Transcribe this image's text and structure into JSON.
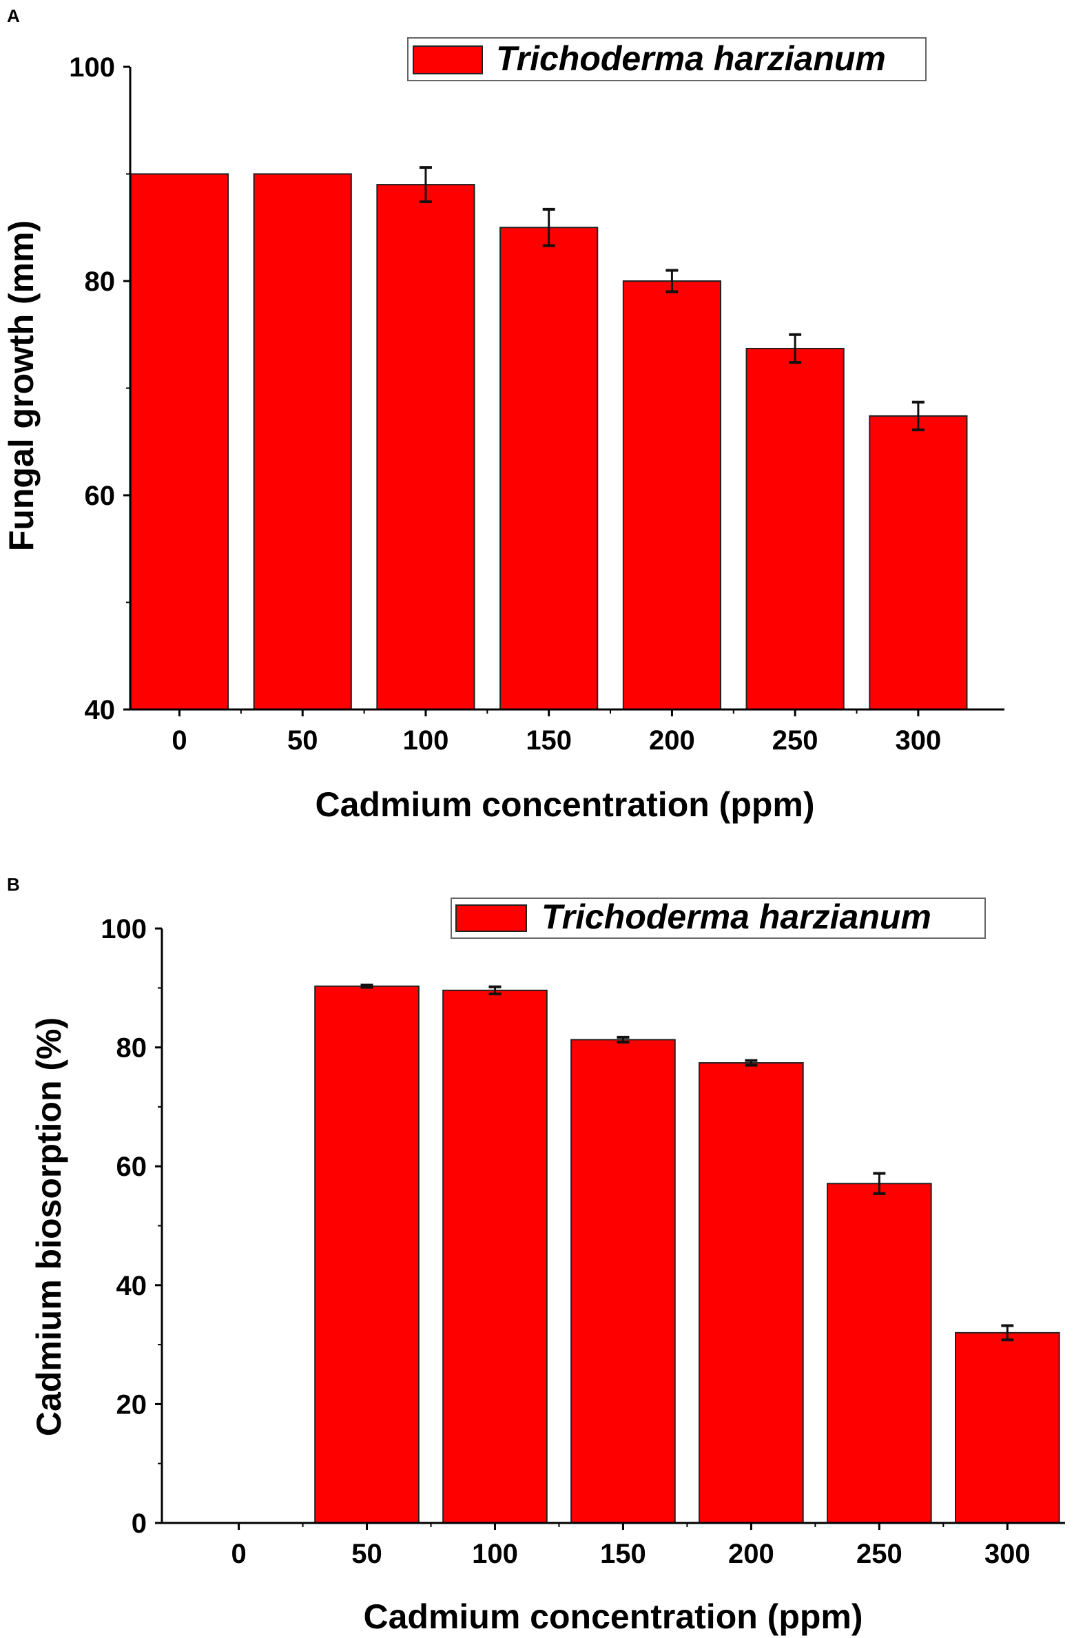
{
  "colors": {
    "bar": "#ff0000",
    "bar_edge": "#222222",
    "axis": "#000000",
    "error_bar": "#111111"
  },
  "chart_data": [
    {
      "panel_label": "A",
      "type": "bar",
      "categories": [
        "0",
        "50",
        "100",
        "150",
        "200",
        "250",
        "300"
      ],
      "values": [
        90,
        90,
        89,
        85,
        80,
        73.7,
        67.4
      ],
      "errors": [
        0,
        0,
        1.6,
        1.7,
        1.0,
        1.3,
        1.3
      ],
      "xlabel": "Cadmium concentration (ppm)",
      "ylabel": "Fungal growth (mm)",
      "ylim": [
        40,
        100
      ],
      "yticks": [
        "40",
        "60",
        "80",
        "100"
      ],
      "legend": {
        "label": "Trichoderma harzianum",
        "position": "top-right"
      }
    },
    {
      "panel_label": "B",
      "type": "bar",
      "categories": [
        "0",
        "50",
        "100",
        "150",
        "200",
        "250",
        "300"
      ],
      "values": [
        0,
        90.3,
        89.6,
        81.3,
        77.4,
        57.1,
        32.0
      ],
      "errors": [
        0,
        0.2,
        0.6,
        0.4,
        0.4,
        1.7,
        1.2
      ],
      "xlabel": "Cadmium concentration (ppm)",
      "ylabel": "Cadmium biosorption (%)",
      "ylim": [
        0,
        100
      ],
      "yticks": [
        "0",
        "20",
        "40",
        "60",
        "80",
        "100"
      ],
      "legend": {
        "label": "Trichoderma harzianum",
        "position": "top-right"
      }
    }
  ]
}
